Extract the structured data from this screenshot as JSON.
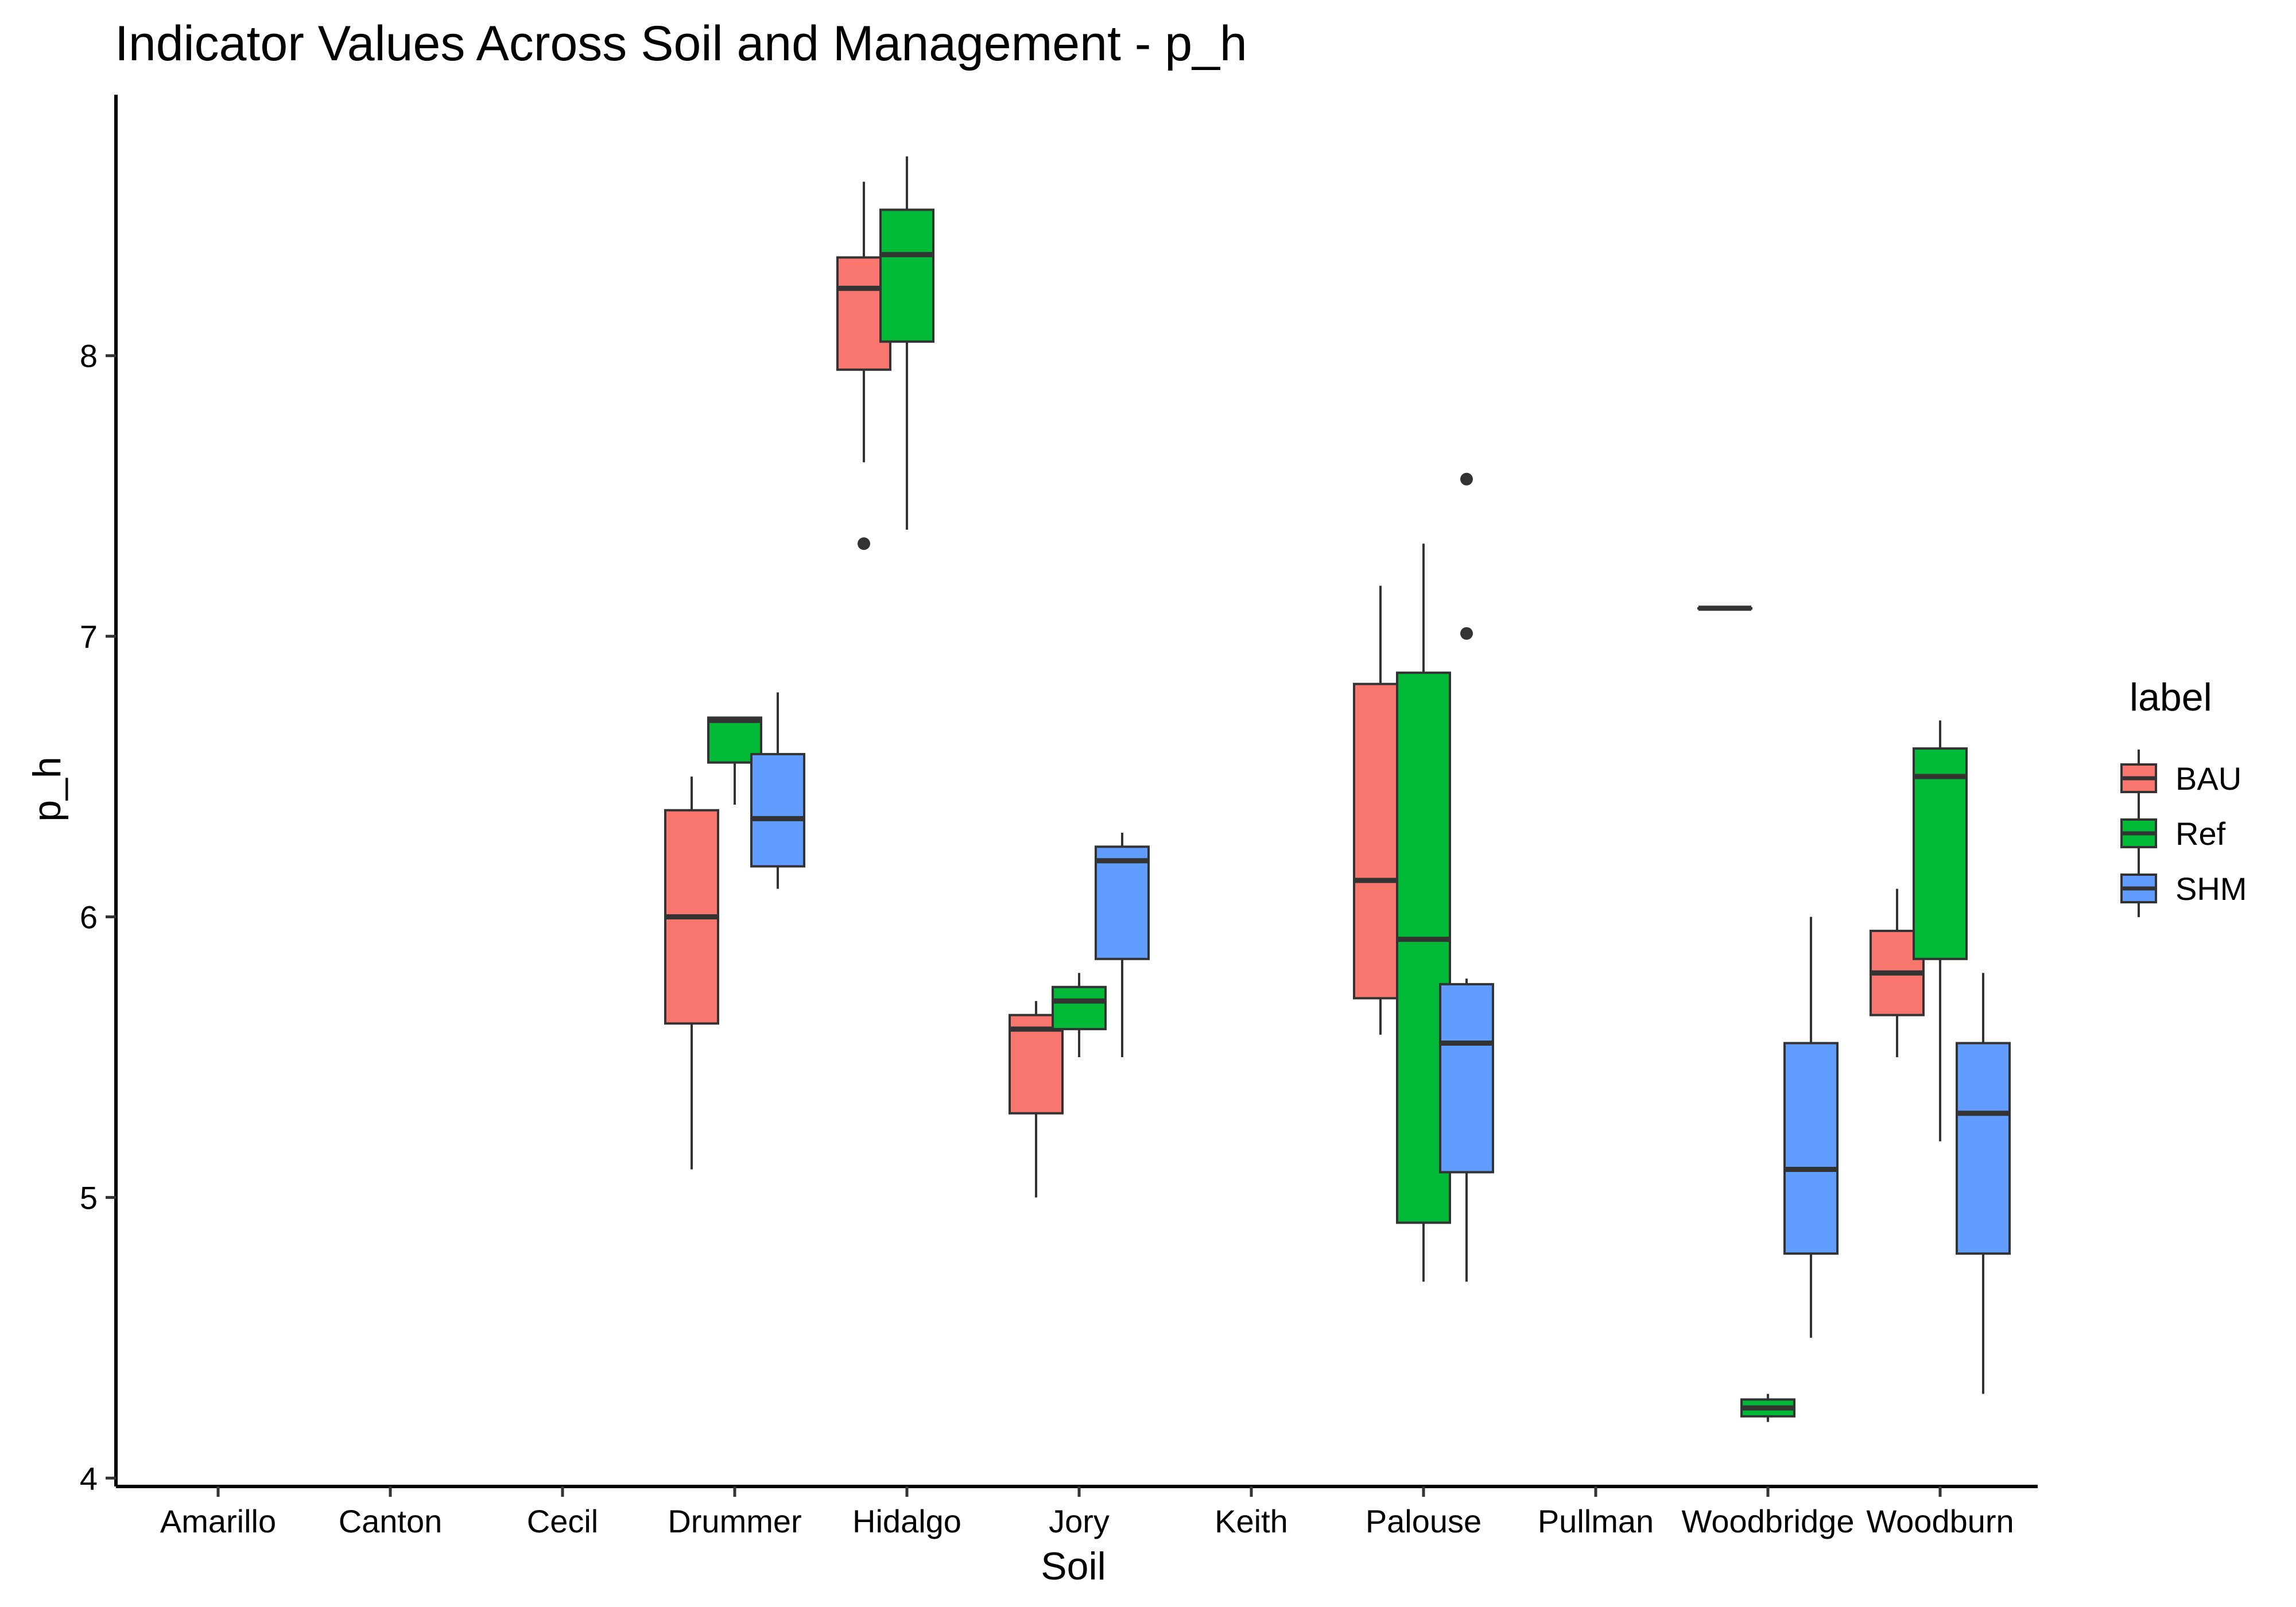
{
  "chart_data": {
    "type": "box",
    "title": "Indicator Values Across Soil and Management - p_h",
    "xlabel": "Soil",
    "ylabel": "p_h",
    "categories": [
      "Amarillo",
      "Canton",
      "Cecil",
      "Drummer",
      "Hidalgo",
      "Jory",
      "Keith",
      "Palouse",
      "Pullman",
      "Woodbridge",
      "Woodburn"
    ],
    "ylim": [
      3.97,
      8.93
    ],
    "yticks": [
      4,
      5,
      6,
      7,
      8
    ],
    "grid": false,
    "legend": {
      "title": "label",
      "position": "right"
    },
    "series": [
      {
        "name": "BAU",
        "color": "#F8766D",
        "boxes": [
          {
            "category": "Drummer",
            "whisker_low": 5.1,
            "q1": 5.62,
            "median": 6.0,
            "q3": 6.38,
            "whisker_high": 6.5,
            "outliers": []
          },
          {
            "category": "Hidalgo",
            "whisker_low": 7.62,
            "q1": 7.95,
            "median": 8.24,
            "q3": 8.35,
            "whisker_high": 8.62,
            "outliers": [
              7.33
            ]
          },
          {
            "category": "Jory",
            "whisker_low": 5.0,
            "q1": 5.3,
            "median": 5.6,
            "q3": 5.65,
            "whisker_high": 5.7,
            "outliers": []
          },
          {
            "category": "Palouse",
            "whisker_low": 5.58,
            "q1": 5.71,
            "median": 6.13,
            "q3": 6.83,
            "whisker_high": 7.18,
            "outliers": []
          },
          {
            "category": "Woodbridge",
            "whisker_low": 7.1,
            "q1": 7.1,
            "median": 7.1,
            "q3": 7.1,
            "whisker_high": 7.1,
            "outliers": []
          },
          {
            "category": "Woodburn",
            "whisker_low": 5.5,
            "q1": 5.65,
            "median": 5.8,
            "q3": 5.95,
            "whisker_high": 6.1,
            "outliers": []
          }
        ]
      },
      {
        "name": "Ref",
        "color": "#00BA38",
        "boxes": [
          {
            "category": "Drummer",
            "whisker_low": 6.4,
            "q1": 6.55,
            "median": 6.7,
            "q3": 6.71,
            "whisker_high": 6.71,
            "outliers": []
          },
          {
            "category": "Hidalgo",
            "whisker_low": 7.38,
            "q1": 8.05,
            "median": 8.36,
            "q3": 8.52,
            "whisker_high": 8.71,
            "outliers": []
          },
          {
            "category": "Jory",
            "whisker_low": 5.5,
            "q1": 5.6,
            "median": 5.7,
            "q3": 5.75,
            "whisker_high": 5.8,
            "outliers": []
          },
          {
            "category": "Palouse",
            "whisker_low": 4.7,
            "q1": 4.91,
            "median": 5.92,
            "q3": 6.87,
            "whisker_high": 7.33,
            "outliers": []
          },
          {
            "category": "Woodbridge",
            "whisker_low": 4.2,
            "q1": 4.22,
            "median": 4.25,
            "q3": 4.28,
            "whisker_high": 4.3,
            "outliers": []
          },
          {
            "category": "Woodburn",
            "whisker_low": 5.2,
            "q1": 5.85,
            "median": 6.5,
            "q3": 6.6,
            "whisker_high": 6.7,
            "outliers": []
          }
        ]
      },
      {
        "name": "SHM",
        "color": "#619CFF",
        "boxes": [
          {
            "category": "Drummer",
            "whisker_low": 6.1,
            "q1": 6.18,
            "median": 6.35,
            "q3": 6.58,
            "whisker_high": 6.8,
            "outliers": []
          },
          {
            "category": "Jory",
            "whisker_low": 5.5,
            "q1": 5.85,
            "median": 6.2,
            "q3": 6.25,
            "whisker_high": 6.3,
            "outliers": []
          },
          {
            "category": "Palouse",
            "whisker_low": 4.7,
            "q1": 5.09,
            "median": 5.55,
            "q3": 5.76,
            "whisker_high": 5.78,
            "outliers": [
              7.01,
              7.56
            ]
          },
          {
            "category": "Woodbridge",
            "whisker_low": 4.5,
            "q1": 4.8,
            "median": 5.1,
            "q3": 5.55,
            "whisker_high": 6.0,
            "outliers": []
          },
          {
            "category": "Woodburn",
            "whisker_low": 4.3,
            "q1": 4.8,
            "median": 5.3,
            "q3": 5.55,
            "whisker_high": 5.8,
            "outliers": []
          }
        ]
      }
    ]
  }
}
